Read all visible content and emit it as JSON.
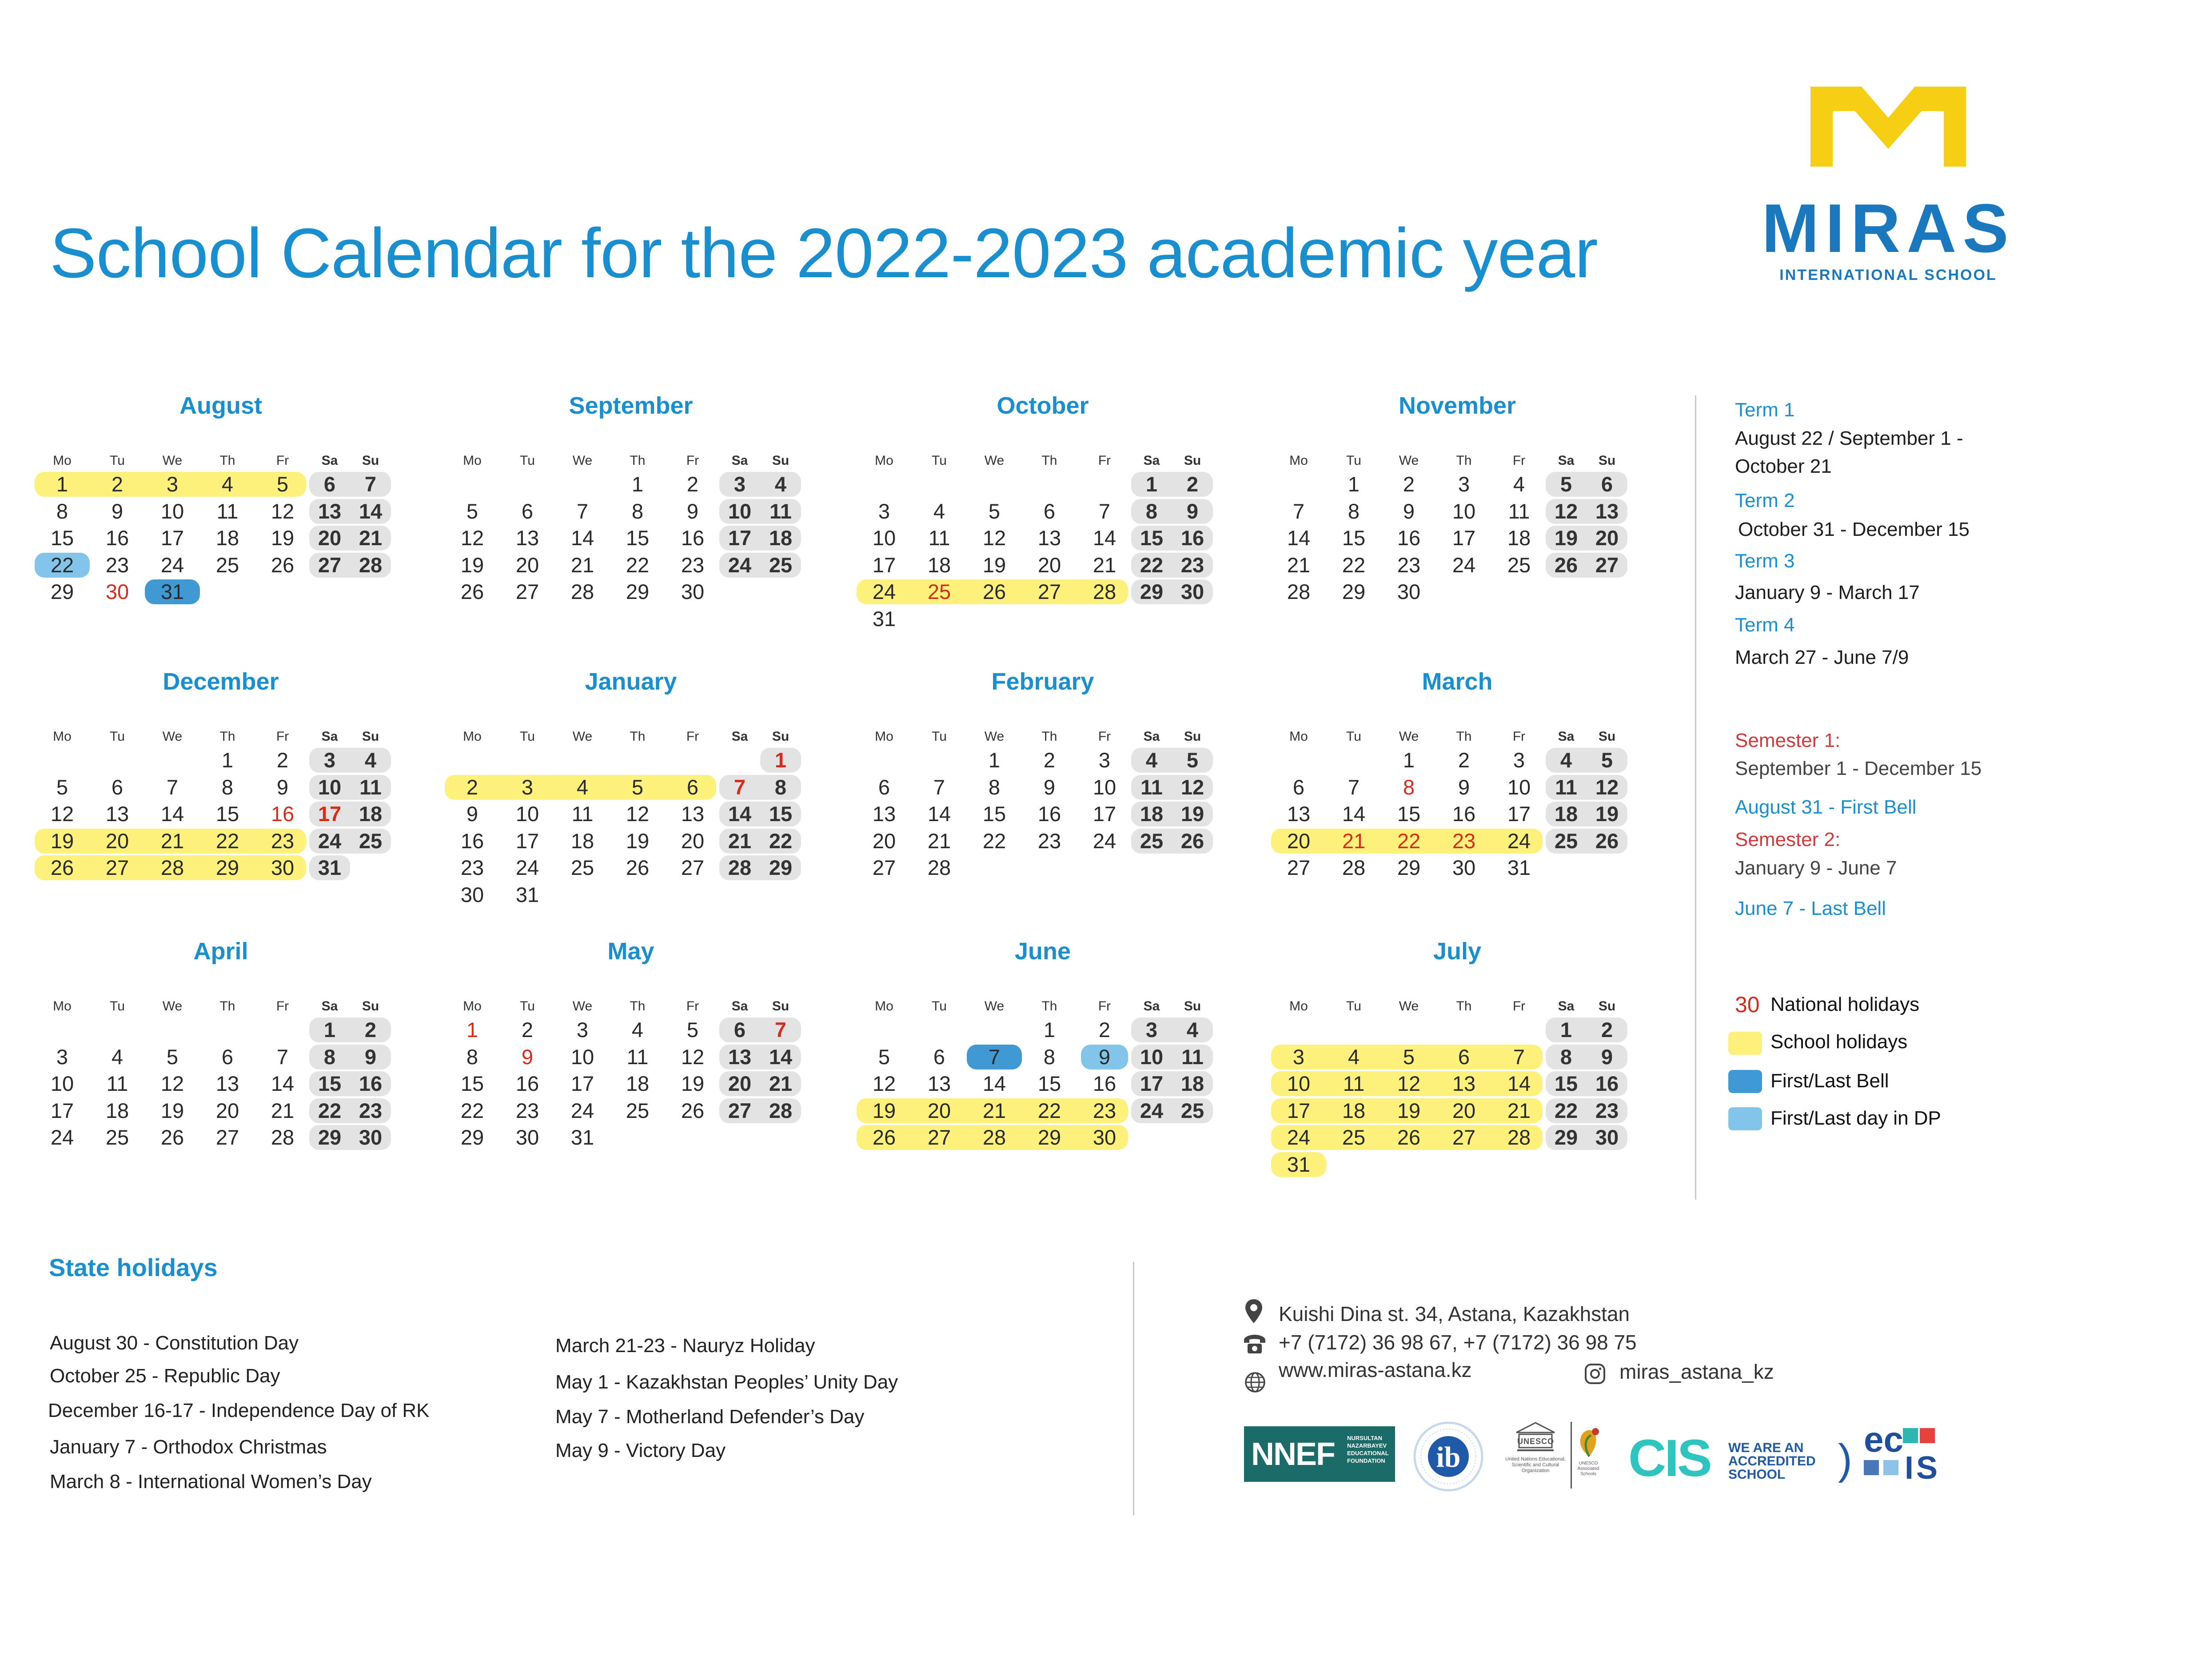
{
  "title": "School Calendar for the 2022-2023 academic year",
  "logo": {
    "wordmark": "MIRAS",
    "subtitle": "INTERNATIONAL SCHOOL",
    "brand_color": "#1a78bf",
    "mark_color": "#f6cf14"
  },
  "weekday_labels": [
    "Mo",
    "Tu",
    "We",
    "Th",
    "Fr",
    "Sa",
    "Su"
  ],
  "colors": {
    "accent": "#1a8fd0",
    "national_holiday": "#d62c1a",
    "school_holiday": "#fdf17c",
    "first_last_bell": "#3f9ad3",
    "first_last_dp": "#83c5ea",
    "weekend_pill": "#e3e3e3"
  },
  "months": [
    {
      "name": "August",
      "start": 0,
      "days": 31,
      "red": [
        30
      ],
      "yellow": [
        [
          1,
          5
        ]
      ],
      "dblue": [
        31
      ],
      "lblue": [
        22
      ]
    },
    {
      "name": "September",
      "start": 3,
      "days": 30,
      "red": [],
      "yellow": [],
      "dblue": [],
      "lblue": []
    },
    {
      "name": "October",
      "start": 5,
      "days": 31,
      "red": [
        25
      ],
      "yellow": [
        [
          24,
          28
        ]
      ],
      "dblue": [],
      "lblue": []
    },
    {
      "name": "November",
      "start": 1,
      "days": 30,
      "red": [],
      "yellow": [],
      "dblue": [],
      "lblue": []
    },
    {
      "name": "December",
      "start": 3,
      "days": 31,
      "red": [
        16,
        17
      ],
      "yellow": [
        [
          19,
          23
        ],
        [
          26,
          30
        ]
      ],
      "dblue": [],
      "lblue": []
    },
    {
      "name": "January",
      "start": 6,
      "days": 31,
      "red": [
        1,
        7
      ],
      "yellow": [
        [
          2,
          6
        ]
      ],
      "dblue": [],
      "lblue": []
    },
    {
      "name": "February",
      "start": 2,
      "days": 28,
      "red": [],
      "yellow": [],
      "dblue": [],
      "lblue": []
    },
    {
      "name": "March",
      "start": 2,
      "days": 31,
      "red": [
        8,
        21,
        22,
        23
      ],
      "yellow": [
        [
          20,
          24
        ]
      ],
      "dblue": [],
      "lblue": []
    },
    {
      "name": "April",
      "start": 5,
      "days": 30,
      "red": [],
      "yellow": [],
      "dblue": [],
      "lblue": []
    },
    {
      "name": "May",
      "start": 0,
      "days": 31,
      "red": [
        1,
        7,
        9
      ],
      "yellow": [],
      "dblue": [],
      "lblue": []
    },
    {
      "name": "June",
      "start": 3,
      "days": 30,
      "red": [],
      "yellow": [
        [
          19,
          23
        ],
        [
          26,
          30
        ]
      ],
      "dblue": [
        7
      ],
      "lblue": [
        9
      ]
    },
    {
      "name": "July",
      "start": 5,
      "days": 31,
      "red": [],
      "yellow": [
        [
          3,
          7
        ],
        [
          10,
          14
        ],
        [
          17,
          21
        ],
        [
          24,
          28
        ],
        [
          31,
          31
        ]
      ],
      "dblue": [],
      "lblue": []
    }
  ],
  "terms": [
    {
      "label": "Term 1",
      "lines": [
        "August 22 / September 1 -",
        "October 21"
      ]
    },
    {
      "label": "Term 2",
      "lines": [
        "October 31 - December 15"
      ]
    },
    {
      "label": "Term 3",
      "lines": [
        "January 9 - March 17"
      ]
    },
    {
      "label": "Term 4",
      "lines": [
        "March 27  - June 7/9"
      ]
    }
  ],
  "semesters": {
    "s1_label": "Semester 1:",
    "s1_dates": "September 1 - December 15",
    "first_bell": "August 31 - First Bell",
    "s2_label": "Semester 2:",
    "s2_dates": "January 9 - June 7",
    "last_bell": "June 7 - Last Bell"
  },
  "legend": {
    "sample_number": "30",
    "national": "National holidays",
    "school": "School holidays",
    "bell": "First/Last Bell",
    "dp": "First/Last day in DP"
  },
  "state_holidays": {
    "title": "State holidays",
    "left": [
      "August 30 - Constitution Day",
      "October 25 - Republic Day",
      "December 16-17 - Independence Day of RK",
      "January 7  - Orthodox Christmas",
      "March 8 - International Women’s Day"
    ],
    "right": [
      "March 21-23 - Nauryz Holiday",
      "May 1 - Kazakhstan Peoples’ Unity Day",
      "May 7 - Motherland Defender’s Day",
      "May 9 - Victory Day"
    ]
  },
  "contacts": {
    "address": "Kuishi Dina st. 34, Astana, Kazakhstan",
    "phones": "+7 (7172) 36 98 67, +7 (7172) 36 98 75",
    "website": "www.miras-astana.kz",
    "instagram": "miras_astana_kz"
  },
  "partners": {
    "nnef_word": "NNEF",
    "nnef_text": "NURSULTAN NAZARBAYEV EDUCATIONAL FOUNDATION",
    "ib_mark": "ib",
    "unesco_word": "UNESCO",
    "unesco_text": "United Nations Educational, Scientific and Cultural Organization",
    "unesco_assoc": "UNESCO Associated Schools",
    "cis_word": "CIS",
    "cis_text": "WE ARE AN ACCREDITED SCHOOL",
    "ecis_top": "ec",
    "ecis_bottom": "IS"
  }
}
